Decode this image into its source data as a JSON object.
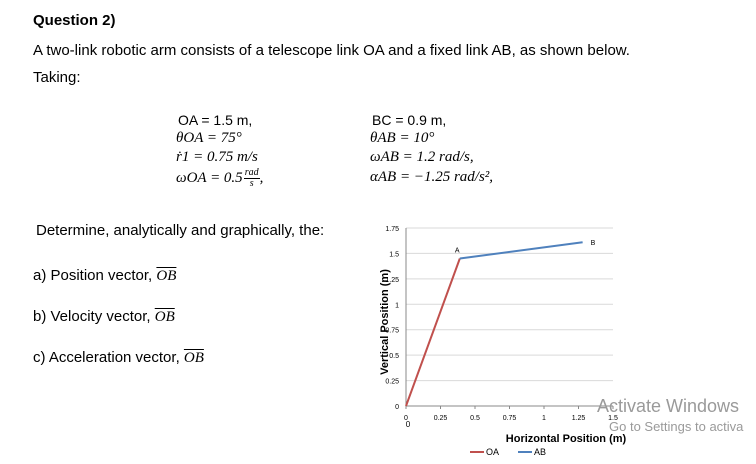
{
  "question": {
    "title": "Question 2)",
    "intro": "A two-link robotic arm consists of a telescope link OA and a fixed link AB, as shown below.",
    "taking": "Taking:"
  },
  "given": {
    "oa": "OA = 1.5 m,",
    "theta_oa": "θOA = 75°",
    "r1_dot": "ṙ1 = 0.75 m/s",
    "omega_oa_prefix": "ωOA = 0.5",
    "omega_oa_num": "rad",
    "omega_oa_den": "s",
    "bc": "BC = 0.9 m,",
    "theta_ab": "θAB = 10°",
    "omega_ab": "ωAB = 1.2 rad/s,",
    "alpha_ab": "αAB = −1.25 rad/s²,"
  },
  "tasks": {
    "determine": "Determine, analytically and graphically, the:",
    "a": "a) Position vector,",
    "b": "b) Velocity vector,",
    "c": "c) Acceleration vector,",
    "vector_label": "OB"
  },
  "chart_data": {
    "type": "line",
    "xlabel": "Horizontal Position (m)",
    "ylabel": "Vertical Position (m)",
    "xlim": [
      0,
      1.5
    ],
    "ylim": [
      0,
      1.75
    ],
    "xticks": [
      "0",
      "0.25",
      "0.5",
      "0.75",
      "1",
      "1.25",
      "1.5"
    ],
    "yticks": [
      "0",
      "0.25",
      "0.5",
      "0.75",
      "1",
      "1.25",
      "1.5",
      "1.75"
    ],
    "origin_label": "0",
    "series": [
      {
        "name": "OA",
        "color": "#c0504d",
        "x": [
          0,
          0.39
        ],
        "y": [
          0,
          1.45
        ]
      },
      {
        "name": "AB",
        "color": "#4f81bd",
        "x": [
          0.39,
          1.28
        ],
        "y": [
          1.45,
          1.61
        ]
      }
    ],
    "point_labels": [
      {
        "text": "A",
        "x": 0.39,
        "y": 1.45
      },
      {
        "text": "B",
        "x": 1.28,
        "y": 1.61
      }
    ],
    "grid": true,
    "legend_position": "bottom"
  },
  "watermark": {
    "line1": "Activate Windows",
    "line2": "Go to Settings to activa"
  }
}
